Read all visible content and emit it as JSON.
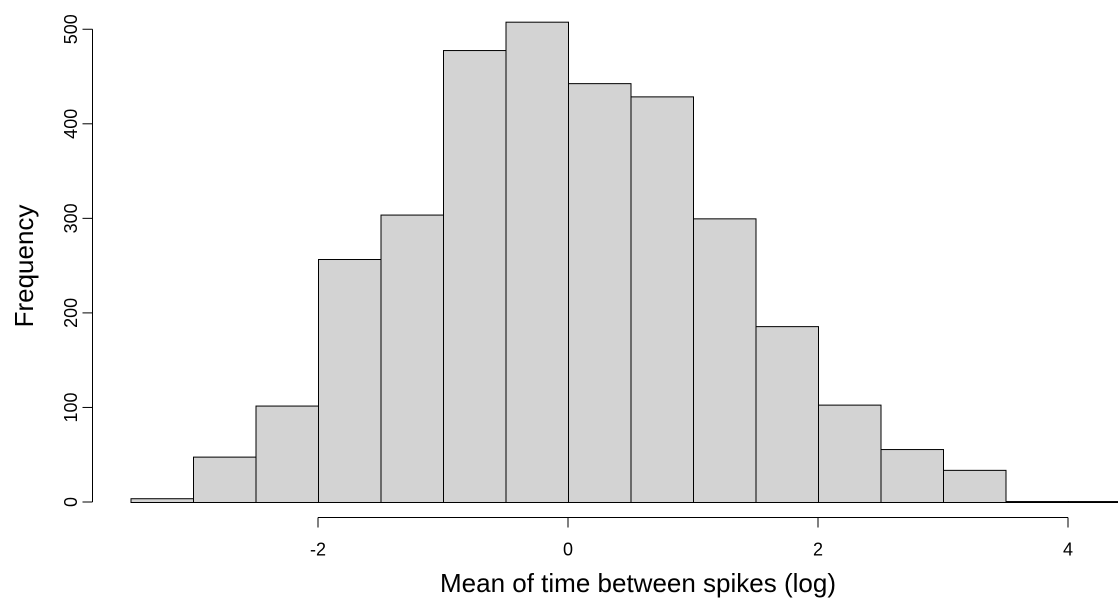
{
  "chart_data": {
    "type": "bar",
    "title": "",
    "xlabel": "Mean of time between spikes (log)",
    "ylabel": "Frequency",
    "bin_edges": [
      -3.5,
      -3,
      -2.5,
      -2,
      -1.5,
      -1,
      -0.5,
      0,
      0.5,
      1,
      1.5,
      2,
      2.5,
      3,
      3.5,
      4,
      4.5
    ],
    "values": [
      4,
      48,
      102,
      257,
      304,
      478,
      508,
      443,
      429,
      300,
      186,
      103,
      56,
      34,
      1,
      1
    ],
    "x_ticks": [
      -2,
      0,
      2,
      4
    ],
    "x_tick_labels": [
      "-2",
      "0",
      "2",
      "4"
    ],
    "y_ticks": [
      0,
      100,
      200,
      300,
      400,
      500
    ],
    "y_tick_labels": [
      "0",
      "100",
      "200",
      "300",
      "400",
      "500"
    ],
    "xlim": [
      -3.5,
      4.5
    ],
    "ylim": [
      0,
      508
    ],
    "grid": false,
    "legend": "none",
    "bar_color": "#d3d3d3",
    "bar_edge_color": "#000000"
  }
}
